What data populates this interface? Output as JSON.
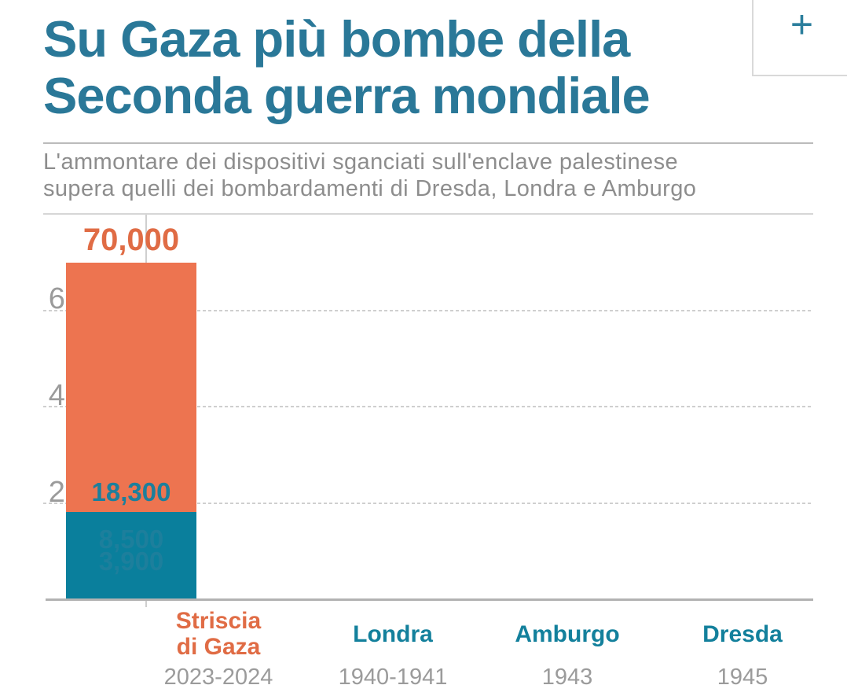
{
  "header": {
    "title_line1": "Su Gaza più bombe della",
    "title_line2": "Seconda guerra mondiale",
    "subtitle_line1": "L'ammontare dei dispositivi sganciati sull'enclave palestinese",
    "subtitle_line2": "supera quelli dei bombardamenti di Dresda, Londra e Amburgo",
    "expand_button_label": "+"
  },
  "colors": {
    "title": "#2a7898",
    "subtitle": "#8d8d8d",
    "orange_bar": "#ed7450",
    "orange_text": "#e06c45",
    "teal_bar": "#0a7f9c",
    "teal_text": "#1d7f9c",
    "axis_text": "#9b9b9b",
    "gridline": "#cfcfcf",
    "baseline": "#b2b2b2"
  },
  "chart_data": {
    "type": "bar",
    "title": "Su Gaza più bombe della Seconda guerra mondiale",
    "subtitle": "L'ammontare dei dispositivi sganciati sull'enclave palestinese supera quelli dei bombardamenti di Dresda, Londra e Amburgo",
    "categories": [
      "Striscia\ndi Gaza",
      "Londra",
      "Amburgo",
      "Dresda"
    ],
    "periods": [
      "2023-2024",
      "1940-1941",
      "1943",
      "1945"
    ],
    "values": [
      70000,
      18300,
      8500,
      3900
    ],
    "value_labels": [
      "70,000",
      "18,300",
      "8,500",
      "3,900"
    ],
    "bar_colors": [
      "#ed7450",
      "#0a7f9c",
      "#0a7f9c",
      "#0a7f9c"
    ],
    "value_label_colors": [
      "#e06c45",
      "#1d7f9c",
      "#1d7f9c",
      "#1d7f9c"
    ],
    "xlabel": "",
    "ylabel": "",
    "ylim": [
      0,
      80000
    ],
    "yticks": [
      0,
      20000,
      40000,
      60000
    ],
    "ytick_labels": [
      "0",
      "20,000",
      "40,000",
      "60,000"
    ],
    "grid": true,
    "legend": false,
    "highlight_index": 0
  }
}
